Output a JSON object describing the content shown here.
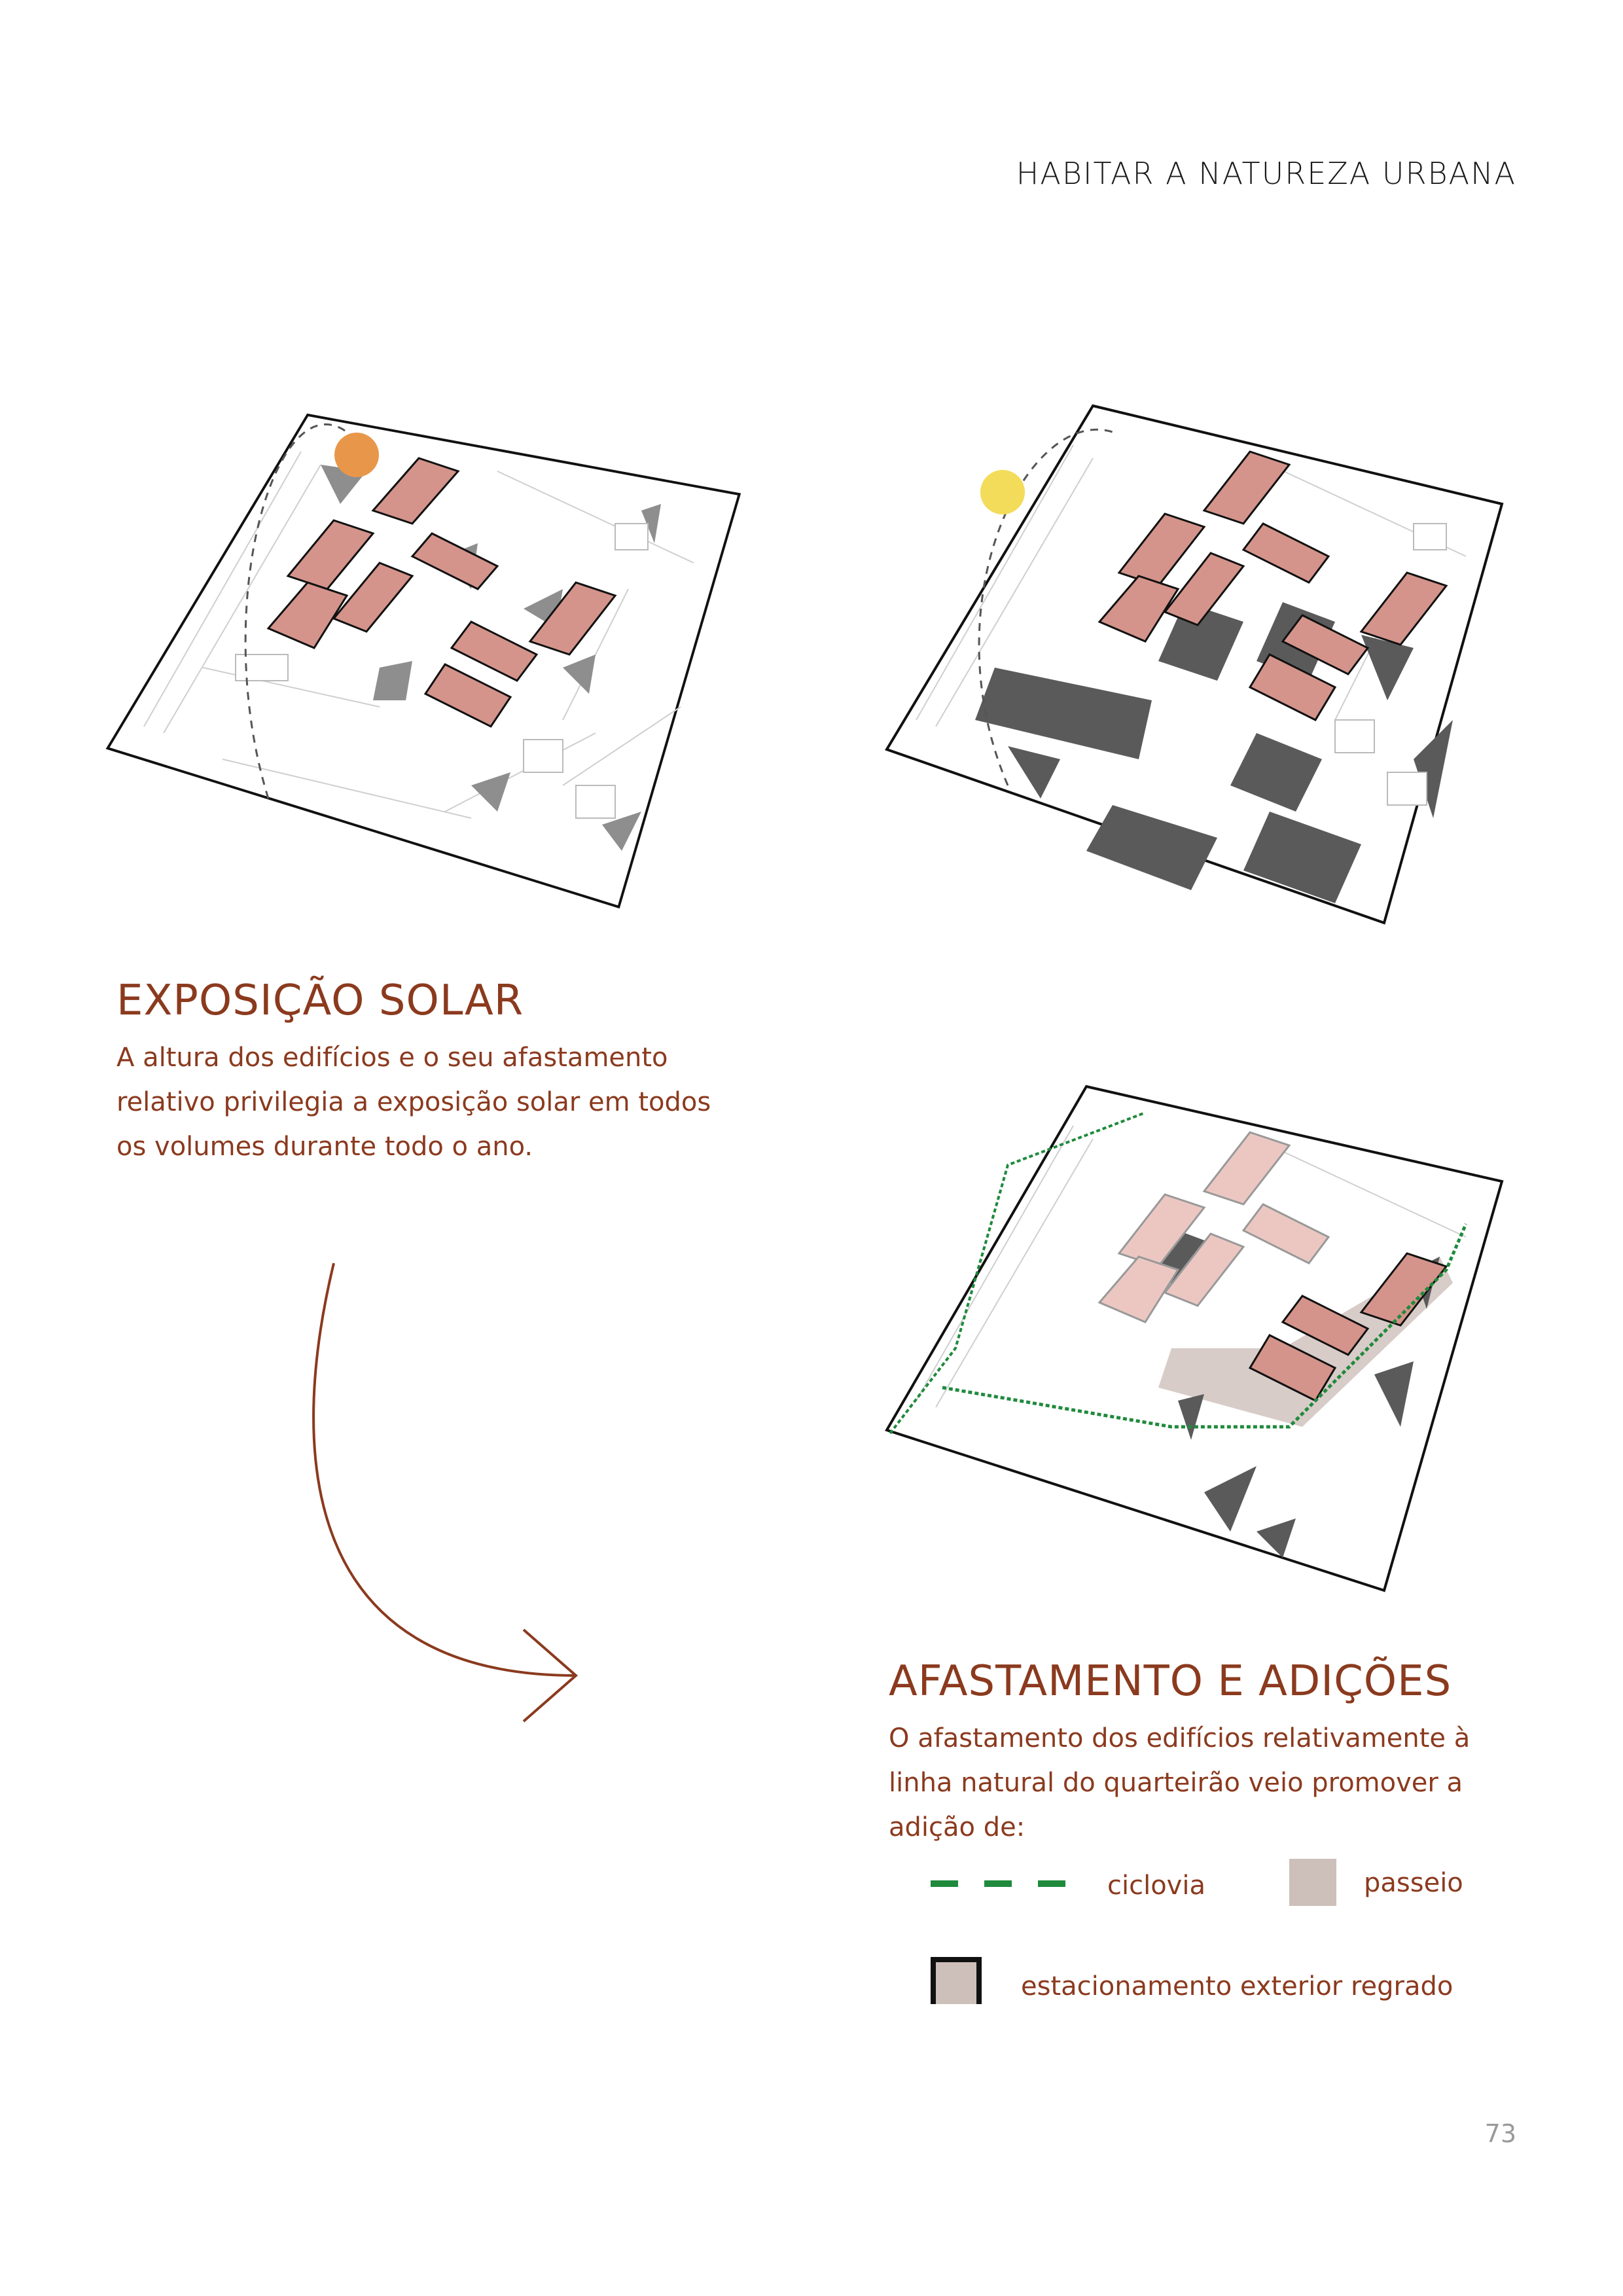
{
  "header": {
    "running_title": "HABITAR A NATUREZA URBANA"
  },
  "section_solar": {
    "heading": "EXPOSIÇÃO SOLAR",
    "lines": [
      "A altura dos edifícios e o seu afastamento",
      "relativo privilegia a exposição solar em todos",
      "os volumes durante todo o ano."
    ]
  },
  "section_additions": {
    "heading": "AFASTAMENTO E ADIÇÕES",
    "lines": [
      "O afastamento dos edifícios relativamente à",
      "linha natural do quarteirão veio promover a",
      "adição de:"
    ]
  },
  "legend": {
    "bike_lane": "ciclovia",
    "sidewalk": "passeio",
    "parking": "estacionamento exterior regrado"
  },
  "colors": {
    "accent": "#8b3a1e",
    "building": "#d4948b",
    "building_light": "#ecc7c2",
    "sun_summer": "#e8974a",
    "sun_winter": "#f3dc5a",
    "bike_lane": "#1f8a3c",
    "sidewalk": "#cdbfba",
    "shadow": "#555555"
  },
  "page_number": "73"
}
